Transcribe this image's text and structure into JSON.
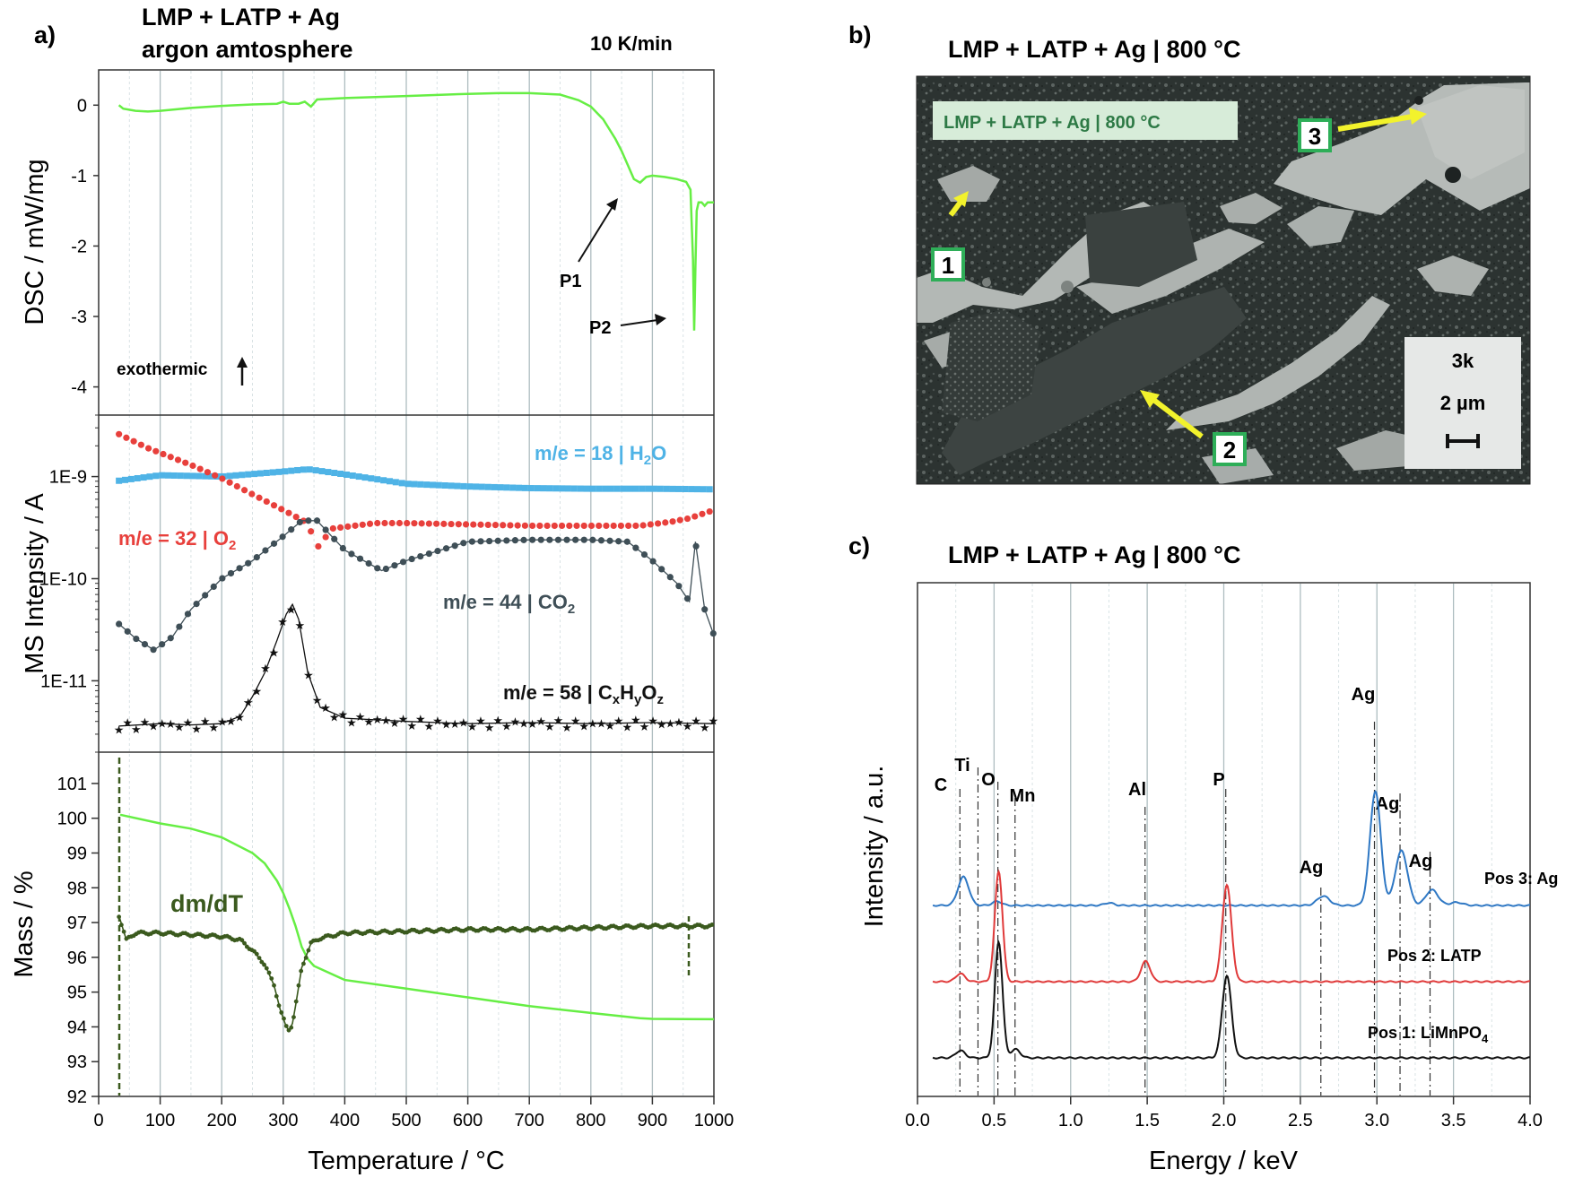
{
  "colors": {
    "dsc": "#66ee44",
    "h2o": "#4fb3e6",
    "o2": "#e8403c",
    "co2": "#3f4f57",
    "c3": "#111111",
    "mass": "#66ee44",
    "dmdt": "#3b5a1e",
    "eds_ag": "#2f78c4",
    "eds_latp": "#e03a3a",
    "eds_lmp": "#111111"
  },
  "panel_a": {
    "letter": "a)",
    "title_line1": "LMP + LATP + Ag",
    "title_line2": "argon amtosphere",
    "rate": "10 K/min",
    "xlabel": "Temperature  /  °C",
    "xticks": [
      "0",
      "100",
      "200",
      "300",
      "400",
      "500",
      "600",
      "700",
      "800",
      "900",
      "1000"
    ]
  },
  "panel_b": {
    "letter": "b)",
    "title": "LMP + LATP + Ag | 800 °C",
    "image_caption": "LMP + LATP + Ag  |  800 °C",
    "mag": "3k",
    "scale_label": "2 µm",
    "markers": [
      "1",
      "2",
      "3"
    ]
  },
  "panel_c": {
    "letter": "c)",
    "title": "LMP + LATP + Ag | 800 °C"
  },
  "chart_data": [
    {
      "type": "line",
      "panel": "a-top",
      "ylabel": "DSC  /  mW/mg",
      "yticks": [
        "0",
        "-1",
        "-2",
        "-3",
        "-4"
      ],
      "xlim": [
        0,
        1000
      ],
      "ylim": [
        -4.4,
        0.5
      ],
      "series": [
        {
          "x": [
            33,
            40,
            60,
            80,
            100,
            150,
            200,
            250,
            290,
            300,
            310,
            325,
            335,
            345,
            355,
            400,
            500,
            600,
            650,
            700,
            750,
            780,
            800,
            820,
            840,
            850,
            860,
            870,
            880,
            890,
            900,
            920,
            940,
            955,
            962,
            966,
            968,
            970,
            972,
            975,
            980,
            985,
            990,
            1000
          ],
          "y": [
            0,
            -0.05,
            -0.08,
            -0.09,
            -0.08,
            -0.04,
            -0.01,
            0.01,
            0.02,
            0.05,
            0.02,
            0.02,
            0.05,
            -0.02,
            0.08,
            0.1,
            0.13,
            0.16,
            0.17,
            0.17,
            0.15,
            0.07,
            -0.02,
            -0.2,
            -0.48,
            -0.65,
            -0.85,
            -1.05,
            -1.1,
            -1.02,
            -1.0,
            -1.02,
            -1.05,
            -1.09,
            -1.2,
            -2.2,
            -3.2,
            -2.3,
            -1.5,
            -1.38,
            -1.38,
            -1.43,
            -1.38,
            -1.38
          ]
        }
      ],
      "annotations": [
        "P1",
        "P2",
        "exothermic"
      ]
    },
    {
      "type": "scatter",
      "panel": "a-middle",
      "ylabel": "MS Intensity  /  A",
      "scale": "log",
      "yticks": [
        "1E-9",
        "1E-10",
        "1E-11"
      ],
      "ylim": [
        2e-12,
        4e-09
      ],
      "series": [
        {
          "name": "m/e = 18 | H2O",
          "x": [
            33,
            100,
            200,
            300,
            340,
            400,
            500,
            600,
            700,
            800,
            900,
            1000
          ],
          "y": [
            9.1e-10,
            1.03e-09,
            1e-09,
            1.12e-09,
            1.18e-09,
            1.05e-09,
            8.5e-10,
            8e-10,
            7.7e-10,
            7.6e-10,
            7.6e-10,
            7.5e-10
          ]
        },
        {
          "name": "m/e = 32 | O2",
          "x": [
            33,
            80,
            150,
            200,
            250,
            300,
            340,
            355,
            380,
            450,
            500,
            600,
            700,
            800,
            880,
            930,
            960,
            1000
          ],
          "y": [
            2.6e-09,
            1.9e-09,
            1.3e-09,
            9.6e-10,
            6.7e-10,
            4.7e-10,
            3.5e-10,
            2e-10,
            3.1e-10,
            3.5e-10,
            3.5e-10,
            3.4e-10,
            3.3e-10,
            3.3e-10,
            3.3e-10,
            3.6e-10,
            3.9e-10,
            4.7e-10
          ]
        },
        {
          "name": "m/e = 44 | CO2",
          "x": [
            33,
            60,
            90,
            120,
            150,
            200,
            250,
            300,
            330,
            355,
            400,
            460,
            500,
            600,
            700,
            800,
            860,
            900,
            940,
            960,
            970,
            985,
            1000
          ],
          "y": [
            3.6e-11,
            2.6e-11,
            2e-11,
            2.7e-11,
            5e-11,
            1e-10,
            1.5e-10,
            2.6e-10,
            3.7e-10,
            3.7e-10,
            1.9e-10,
            1.2e-10,
            1.5e-10,
            2.3e-10,
            2.4e-10,
            2.4e-10,
            2.3e-10,
            1.5e-10,
            9e-11,
            6e-11,
            2.3e-10,
            5e-11,
            2.8e-11
          ]
        },
        {
          "name": "m/e = 58 | CxHyOz",
          "x": [
            33,
            100,
            150,
            200,
            230,
            250,
            270,
            290,
            305,
            315,
            325,
            340,
            360,
            400,
            500,
            600,
            700,
            800,
            900,
            1000
          ],
          "y": [
            3.6e-12,
            3.8e-12,
            3.7e-12,
            3.8e-12,
            4.5e-12,
            7e-12,
            1.2e-11,
            2.5e-11,
            4.5e-11,
            5.6e-11,
            4e-11,
            1.2e-11,
            5.5e-12,
            4.3e-12,
            4e-12,
            3.8e-12,
            3.9e-12,
            3.8e-12,
            3.9e-12,
            3.8e-12
          ]
        }
      ]
    },
    {
      "type": "line",
      "panel": "a-bottom",
      "ylabel": "Mass  /  %",
      "yticks": [
        "92",
        "93",
        "94",
        "95",
        "96",
        "97",
        "98",
        "99",
        "100",
        "101"
      ],
      "ylim": [
        92,
        101.9
      ],
      "series": [
        {
          "name": "Mass",
          "x": [
            35,
            100,
            150,
            200,
            250,
            270,
            290,
            300,
            310,
            320,
            330,
            340,
            350,
            400,
            500,
            600,
            700,
            800,
            880,
            900,
            1000
          ],
          "y": [
            100.1,
            99.85,
            99.7,
            99.45,
            99.0,
            98.7,
            98.2,
            97.85,
            97.4,
            96.9,
            96.3,
            95.95,
            95.75,
            95.35,
            95.1,
            94.85,
            94.6,
            94.4,
            94.25,
            94.23,
            94.22
          ]
        },
        {
          "name": "dm/dT",
          "x": [
            33,
            45,
            60,
            100,
            150,
            200,
            230,
            250,
            270,
            285,
            295,
            305,
            310,
            315,
            320,
            330,
            345,
            360,
            400,
            500,
            600,
            700,
            800,
            900,
            960,
            990,
            998
          ],
          "y": [
            97.2,
            96.5,
            96.7,
            96.7,
            96.65,
            96.6,
            96.5,
            96.2,
            95.8,
            95.2,
            94.5,
            94.0,
            93.9,
            94.1,
            94.6,
            95.7,
            96.4,
            96.55,
            96.7,
            96.75,
            96.8,
            96.8,
            96.85,
            96.9,
            96.9,
            96.9,
            96.9
          ]
        }
      ],
      "annotations": [
        "dm/dT"
      ]
    },
    {
      "type": "line",
      "panel": "c",
      "xlabel": "Energy  /  keV",
      "ylabel": "Intensity  /  a.u.",
      "xticks": [
        "0.0",
        "0.5",
        "1.0",
        "1.5",
        "2.0",
        "2.5",
        "3.0",
        "3.5",
        "4.0"
      ],
      "xlim": [
        0,
        4.0
      ],
      "element_lines": [
        {
          "label": "C",
          "x": 0.277
        },
        {
          "label": "Ti",
          "x": 0.395
        },
        {
          "label": "O",
          "x": 0.525
        },
        {
          "label": "Mn",
          "x": 0.637
        },
        {
          "label": "Al",
          "x": 1.486
        },
        {
          "label": "P",
          "x": 2.013
        },
        {
          "label": "Ag",
          "x": 2.634
        },
        {
          "label": "Ag",
          "x": 2.984
        },
        {
          "label": "Ag",
          "x": 3.151
        },
        {
          "label": "Ag",
          "x": 3.347
        }
      ],
      "series": [
        {
          "name": "Pos 3: Ag",
          "baseline": 0,
          "peaks": [
            [
              0.3,
              0.55,
              0.035
            ],
            [
              0.52,
              0.08,
              0.03
            ],
            [
              1.25,
              0.05,
              0.03
            ],
            [
              2.65,
              0.18,
              0.04
            ],
            [
              2.99,
              2.2,
              0.035
            ],
            [
              3.16,
              1.05,
              0.04
            ],
            [
              3.36,
              0.3,
              0.04
            ],
            [
              3.52,
              0.06,
              0.04
            ]
          ]
        },
        {
          "name": "Pos 2: LATP",
          "baseline": 0,
          "peaks": [
            [
              0.28,
              0.15,
              0.03
            ],
            [
              0.53,
              2.05,
              0.025
            ],
            [
              1.49,
              0.38,
              0.03
            ],
            [
              2.02,
              1.8,
              0.03
            ]
          ]
        },
        {
          "name": "Pos 1: LiMnPO4",
          "baseline": 0,
          "peaks": [
            [
              0.28,
              0.12,
              0.03
            ],
            [
              0.53,
              1.9,
              0.025
            ],
            [
              0.64,
              0.14,
              0.03
            ],
            [
              2.02,
              1.35,
              0.03
            ]
          ]
        }
      ]
    }
  ]
}
